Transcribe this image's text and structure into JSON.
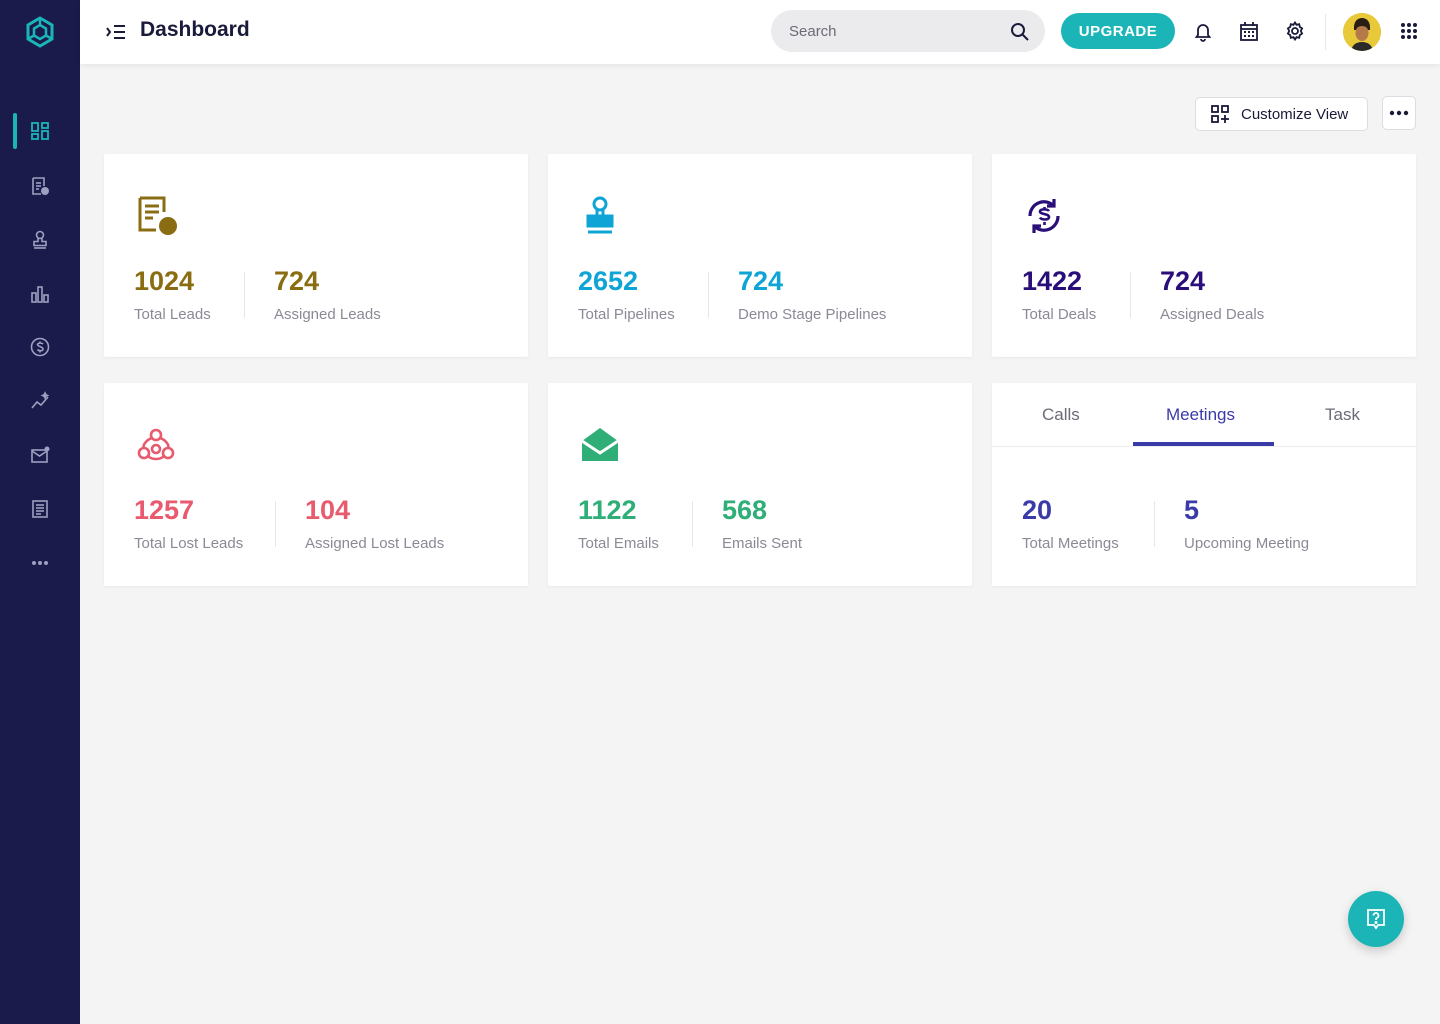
{
  "header": {
    "title": "Dashboard",
    "search_placeholder": "Search",
    "upgrade_label": "UPGRADE"
  },
  "sidebar": {
    "items": [
      {
        "name": "dashboard",
        "icon": "dashboard-icon",
        "active": true
      },
      {
        "name": "leads",
        "icon": "leads-icon"
      },
      {
        "name": "pipelines",
        "icon": "stamp-icon"
      },
      {
        "name": "reports",
        "icon": "bar-chart-icon"
      },
      {
        "name": "deals",
        "icon": "dollar-icon"
      },
      {
        "name": "analytics",
        "icon": "sparkline-icon"
      },
      {
        "name": "emails",
        "icon": "mail-icon"
      },
      {
        "name": "documents",
        "icon": "document-icon"
      },
      {
        "name": "more",
        "icon": "more-horizontal-icon"
      }
    ]
  },
  "toolbar": {
    "customize_label": "Customize View"
  },
  "cards": {
    "leads": {
      "color": "#8a6d12",
      "total": "1024",
      "total_label": "Total Leads",
      "assigned": "724",
      "assigned_label": "Assigned Leads"
    },
    "pipelines": {
      "color": "#0ea5d6",
      "total": "2652",
      "total_label": "Total Pipelines",
      "assigned": "724",
      "assigned_label": "Demo Stage Pipelines"
    },
    "deals": {
      "color": "#2a0f7a",
      "total": "1422",
      "total_label": "Total Deals",
      "assigned": "724",
      "assigned_label": "Assigned Deals"
    },
    "lost_leads": {
      "color": "#e85a6e",
      "total": "1257",
      "total_label": "Total Lost Leads",
      "assigned": "104",
      "assigned_label": "Assigned Lost Leads"
    },
    "emails": {
      "color": "#2fae78",
      "total": "1122",
      "total_label": "Total Emails",
      "assigned": "568",
      "assigned_label": "Emails Sent"
    },
    "activities": {
      "color": "#3a3aa8",
      "tabs": [
        "Calls",
        "Meetings",
        "Task"
      ],
      "active_tab": "Meetings",
      "total": "20",
      "total_label": "Total Meetings",
      "assigned": "5",
      "assigned_label": "Upcoming Meeting"
    }
  }
}
